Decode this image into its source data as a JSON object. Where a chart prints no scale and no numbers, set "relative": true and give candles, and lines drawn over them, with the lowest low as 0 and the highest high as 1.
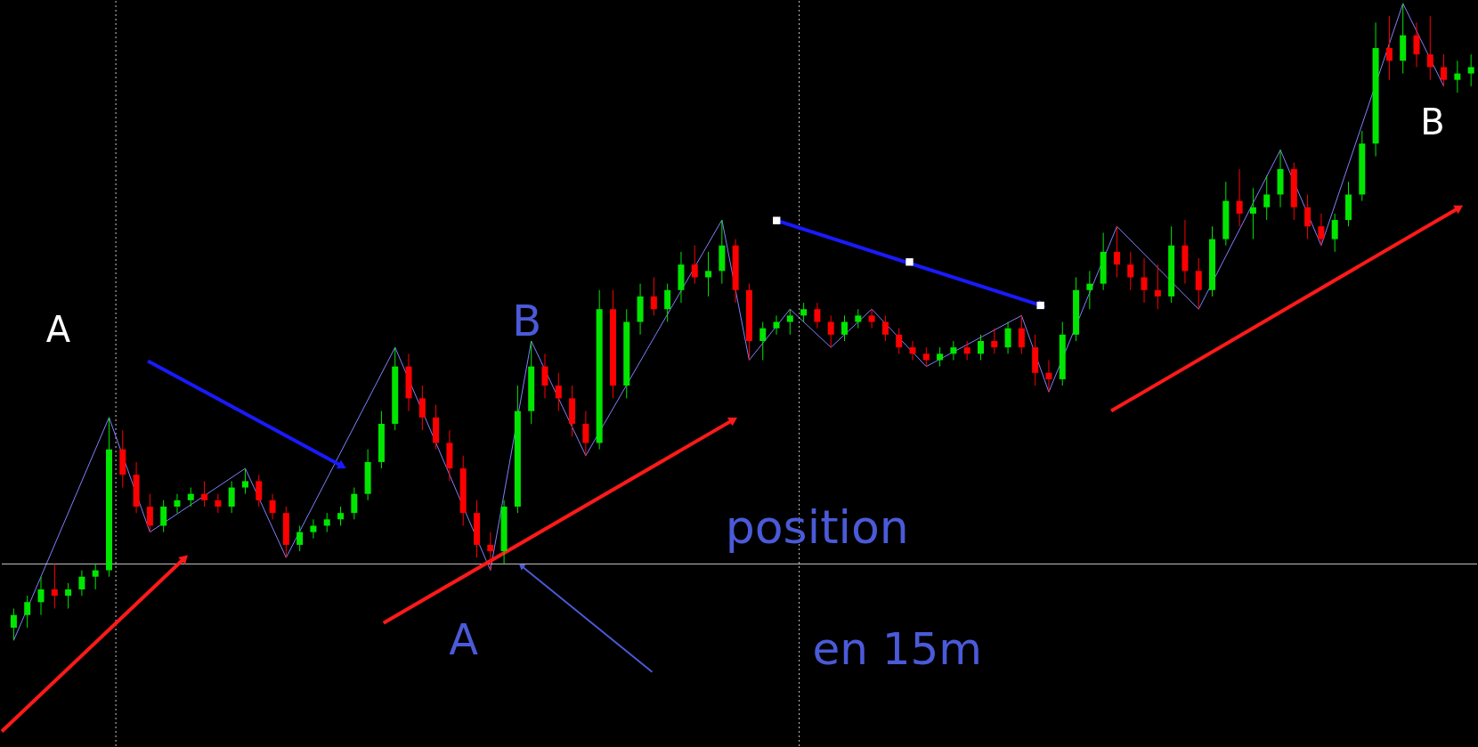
{
  "chart_data": {
    "type": "candlestick",
    "relative": true,
    "colors": [
      "#00e600",
      "#00e600",
      "#00e600",
      "#ff0000",
      "#00e600",
      "#00e600",
      "#00e600",
      "#00e600",
      "#ff0000",
      "#ff0000",
      "#ff0000",
      "#00e600",
      "#00e600",
      "#00e600",
      "#ff0000",
      "#ff0000",
      "#00e600",
      "#00e600",
      "#ff0000",
      "#ff0000",
      "#ff0000",
      "#00e600",
      "#00e600",
      "#00e600",
      "#00e600",
      "#00e600",
      "#00e600",
      "#00e600",
      "#00e600",
      "#ff0000",
      "#ff0000",
      "#ff0000",
      "#ff0000",
      "#ff0000",
      "#ff0000",
      "#ff0000",
      "#00e600",
      "#00e600",
      "#00e600",
      "#ff0000",
      "#ff0000",
      "#ff0000",
      "#ff0000",
      "#00e600",
      "#ff0000",
      "#00e600",
      "#00e600",
      "#ff0000",
      "#00e600",
      "#00e600",
      "#ff0000",
      "#00e600",
      "#00e600",
      "#ff0000",
      "#ff0000",
      "#00e600",
      "#00e600",
      "#00e600",
      "#00e600",
      "#ff0000",
      "#ff0000",
      "#00e600",
      "#00e600",
      "#ff0000",
      "#ff0000",
      "#ff0000",
      "#ff0000",
      "#ff0000",
      "#00e600",
      "#00e600",
      "#ff0000",
      "#00e600",
      "#ff0000",
      "#00e600",
      "#ff0000",
      "#ff0000",
      "#ff0000",
      "#00e600",
      "#00e600",
      "#00e600",
      "#00e600",
      "#ff0000",
      "#ff0000",
      "#ff0000",
      "#ff0000",
      "#00e600",
      "#ff0000",
      "#ff0000",
      "#00e600",
      "#00e600",
      "#ff0000",
      "#00e600",
      "#00e600",
      "#00e600",
      "#ff0000",
      "#ff0000",
      "#ff0000",
      "#00e600",
      "#00e600",
      "#00e600",
      "#00e600",
      "#ff0000",
      "#00e600",
      "#ff0000",
      "#ff0000",
      "#ff0000",
      "#00e600",
      "#00e600"
    ],
    "categories": [
      null,
      null,
      null,
      null,
      null,
      null,
      null,
      null,
      null,
      null,
      null,
      null,
      null,
      null,
      null,
      null,
      null,
      null,
      null,
      null,
      null,
      null,
      null,
      null,
      null,
      null,
      null,
      null,
      null,
      null,
      null,
      null,
      null,
      null,
      null,
      null,
      null,
      null,
      null,
      null,
      null,
      null,
      null,
      null,
      null,
      null,
      null,
      null,
      null,
      null,
      null,
      null,
      null,
      null,
      null,
      null,
      null,
      null,
      null,
      null,
      null,
      null,
      null,
      null,
      null,
      null,
      null,
      null,
      null,
      null,
      null,
      null,
      null,
      null,
      null,
      null,
      null,
      null,
      null,
      null,
      null,
      null,
      null,
      null,
      null,
      null,
      null,
      null,
      null,
      null,
      null,
      null,
      null,
      null,
      null,
      null,
      null,
      null,
      null,
      null,
      null,
      null,
      null,
      null,
      null,
      null,
      null,
      null
    ],
    "ohlc": [
      [
        0.02,
        0.05,
        0,
        0.04
      ],
      [
        0.04,
        0.07,
        0.02,
        0.06
      ],
      [
        0.06,
        0.1,
        0.04,
        0.08
      ],
      [
        0.08,
        0.12,
        0.05,
        0.07
      ],
      [
        0.07,
        0.09,
        0.05,
        0.08
      ],
      [
        0.08,
        0.11,
        0.07,
        0.1
      ],
      [
        0.1,
        0.12,
        0.08,
        0.11
      ],
      [
        0.11,
        0.35,
        0.1,
        0.3
      ],
      [
        0.3,
        0.33,
        0.24,
        0.26
      ],
      [
        0.26,
        0.28,
        0.2,
        0.21
      ],
      [
        0.21,
        0.23,
        0.17,
        0.18
      ],
      [
        0.18,
        0.22,
        0.17,
        0.21
      ],
      [
        0.21,
        0.23,
        0.2,
        0.22
      ],
      [
        0.22,
        0.24,
        0.21,
        0.23
      ],
      [
        0.23,
        0.25,
        0.21,
        0.22
      ],
      [
        0.22,
        0.23,
        0.2,
        0.21
      ],
      [
        0.21,
        0.25,
        0.2,
        0.24
      ],
      [
        0.24,
        0.27,
        0.23,
        0.25
      ],
      [
        0.25,
        0.26,
        0.21,
        0.22
      ],
      [
        0.22,
        0.23,
        0.19,
        0.2
      ],
      [
        0.2,
        0.21,
        0.13,
        0.15
      ],
      [
        0.15,
        0.18,
        0.14,
        0.17
      ],
      [
        0.17,
        0.19,
        0.16,
        0.18
      ],
      [
        0.18,
        0.2,
        0.17,
        0.19
      ],
      [
        0.19,
        0.21,
        0.18,
        0.2
      ],
      [
        0.2,
        0.24,
        0.19,
        0.23
      ],
      [
        0.23,
        0.3,
        0.22,
        0.28
      ],
      [
        0.28,
        0.36,
        0.27,
        0.34
      ],
      [
        0.34,
        0.46,
        0.33,
        0.43
      ],
      [
        0.43,
        0.45,
        0.36,
        0.38
      ],
      [
        0.38,
        0.4,
        0.33,
        0.35
      ],
      [
        0.35,
        0.37,
        0.3,
        0.31
      ],
      [
        0.31,
        0.33,
        0.25,
        0.27
      ],
      [
        0.27,
        0.29,
        0.18,
        0.2
      ],
      [
        0.2,
        0.22,
        0.13,
        0.15
      ],
      [
        0.15,
        0.17,
        0.11,
        0.14
      ],
      [
        0.14,
        0.22,
        0.12,
        0.21
      ],
      [
        0.21,
        0.4,
        0.2,
        0.36
      ],
      [
        0.36,
        0.47,
        0.34,
        0.43
      ],
      [
        0.43,
        0.45,
        0.38,
        0.4
      ],
      [
        0.4,
        0.42,
        0.36,
        0.38
      ],
      [
        0.38,
        0.4,
        0.32,
        0.34
      ],
      [
        0.34,
        0.36,
        0.29,
        0.31
      ],
      [
        0.31,
        0.55,
        0.3,
        0.52
      ],
      [
        0.52,
        0.55,
        0.38,
        0.4
      ],
      [
        0.4,
        0.52,
        0.38,
        0.5
      ],
      [
        0.5,
        0.56,
        0.48,
        0.54
      ],
      [
        0.54,
        0.57,
        0.51,
        0.52
      ],
      [
        0.52,
        0.56,
        0.5,
        0.55
      ],
      [
        0.55,
        0.61,
        0.53,
        0.59
      ],
      [
        0.59,
        0.62,
        0.56,
        0.57
      ],
      [
        0.57,
        0.61,
        0.54,
        0.58
      ],
      [
        0.58,
        0.66,
        0.56,
        0.62
      ],
      [
        0.62,
        0.63,
        0.53,
        0.55
      ],
      [
        0.55,
        0.56,
        0.44,
        0.47
      ],
      [
        0.47,
        0.5,
        0.44,
        0.49
      ],
      [
        0.49,
        0.51,
        0.48,
        0.5
      ],
      [
        0.5,
        0.52,
        0.48,
        0.51
      ],
      [
        0.51,
        0.53,
        0.5,
        0.52
      ],
      [
        0.52,
        0.53,
        0.49,
        0.5
      ],
      [
        0.5,
        0.51,
        0.46,
        0.48
      ],
      [
        0.48,
        0.51,
        0.47,
        0.5
      ],
      [
        0.5,
        0.52,
        0.49,
        0.51
      ],
      [
        0.51,
        0.52,
        0.49,
        0.5
      ],
      [
        0.5,
        0.51,
        0.47,
        0.48
      ],
      [
        0.48,
        0.49,
        0.45,
        0.46
      ],
      [
        0.46,
        0.47,
        0.44,
        0.45
      ],
      [
        0.45,
        0.46,
        0.43,
        0.44
      ],
      [
        0.44,
        0.46,
        0.43,
        0.45
      ],
      [
        0.45,
        0.47,
        0.44,
        0.46
      ],
      [
        0.46,
        0.47,
        0.44,
        0.45
      ],
      [
        0.45,
        0.48,
        0.44,
        0.47
      ],
      [
        0.47,
        0.49,
        0.45,
        0.46
      ],
      [
        0.46,
        0.5,
        0.45,
        0.49
      ],
      [
        0.49,
        0.51,
        0.45,
        0.46
      ],
      [
        0.46,
        0.48,
        0.4,
        0.42
      ],
      [
        0.42,
        0.44,
        0.39,
        0.41
      ],
      [
        0.41,
        0.5,
        0.4,
        0.48
      ],
      [
        0.48,
        0.57,
        0.47,
        0.55
      ],
      [
        0.55,
        0.58,
        0.52,
        0.56
      ],
      [
        0.56,
        0.64,
        0.55,
        0.61
      ],
      [
        0.61,
        0.65,
        0.57,
        0.59
      ],
      [
        0.59,
        0.61,
        0.55,
        0.57
      ],
      [
        0.57,
        0.6,
        0.53,
        0.55
      ],
      [
        0.55,
        0.59,
        0.52,
        0.54
      ],
      [
        0.54,
        0.65,
        0.53,
        0.62
      ],
      [
        0.62,
        0.66,
        0.56,
        0.58
      ],
      [
        0.58,
        0.6,
        0.52,
        0.55
      ],
      [
        0.55,
        0.65,
        0.54,
        0.63
      ],
      [
        0.63,
        0.72,
        0.62,
        0.69
      ],
      [
        0.69,
        0.74,
        0.65,
        0.67
      ],
      [
        0.67,
        0.71,
        0.63,
        0.68
      ],
      [
        0.68,
        0.73,
        0.66,
        0.7
      ],
      [
        0.7,
        0.77,
        0.68,
        0.74
      ],
      [
        0.74,
        0.75,
        0.66,
        0.68
      ],
      [
        0.68,
        0.7,
        0.63,
        0.65
      ],
      [
        0.65,
        0.67,
        0.62,
        0.63
      ],
      [
        0.63,
        0.67,
        0.61,
        0.66
      ],
      [
        0.66,
        0.72,
        0.65,
        0.7
      ],
      [
        0.7,
        0.8,
        0.69,
        0.78
      ],
      [
        0.78,
        0.97,
        0.76,
        0.93
      ],
      [
        0.93,
        0.98,
        0.88,
        0.91
      ],
      [
        0.91,
        1.0,
        0.89,
        0.95
      ],
      [
        0.95,
        0.97,
        0.9,
        0.92
      ],
      [
        0.92,
        0.98,
        0.88,
        0.9
      ],
      [
        0.9,
        0.92,
        0.87,
        0.88
      ],
      [
        0.88,
        0.91,
        0.86,
        0.89
      ],
      [
        0.89,
        0.92,
        0.87,
        0.9
      ]
    ],
    "series": [
      {
        "type": "line",
        "color": "#8080ff",
        "values": [
          0,
          null,
          null,
          null,
          null,
          null,
          null,
          0.35,
          null,
          null,
          0.17,
          null,
          null,
          null,
          null,
          null,
          null,
          0.27,
          null,
          null,
          0.13,
          null,
          null,
          null,
          null,
          null,
          null,
          null,
          0.46,
          null,
          null,
          null,
          null,
          null,
          null,
          0.11,
          null,
          null,
          0.47,
          null,
          null,
          null,
          0.29,
          null,
          null,
          null,
          null,
          null,
          null,
          null,
          null,
          null,
          0.66,
          null,
          0.44,
          null,
          null,
          0.52,
          null,
          null,
          0.46,
          null,
          null,
          0.52,
          null,
          null,
          null,
          0.43,
          null,
          null,
          null,
          null,
          null,
          null,
          0.51,
          null,
          0.39,
          null,
          null,
          null,
          null,
          0.65,
          null,
          null,
          null,
          null,
          null,
          0.52,
          null,
          null,
          null,
          null,
          null,
          0.77,
          null,
          null,
          0.62,
          null,
          null,
          null,
          null,
          null,
          1.0,
          null,
          null,
          0.87,
          null,
          null
        ]
      }
    ],
    "ref_lines": [
      {
        "axis": "y",
        "value": 0.12,
        "color": "#c8c8c8"
      }
    ],
    "annotations": [
      "A",
      "B",
      "B",
      "A",
      "position",
      "en 15m"
    ]
  }
}
